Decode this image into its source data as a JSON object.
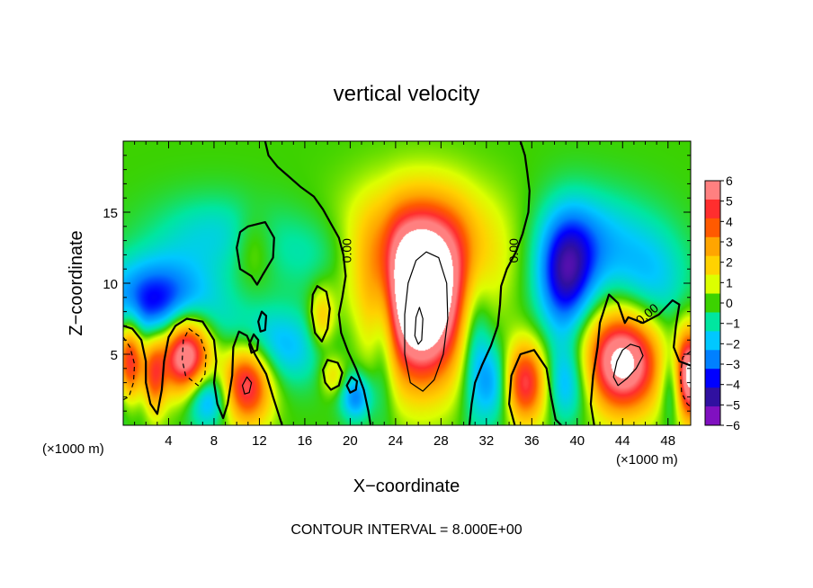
{
  "chart_data": {
    "type": "heatmap",
    "title": "vertical velocity",
    "xlabel": "X−coordinate",
    "ylabel": "Z−coordinate",
    "x_unit_left": "(×1000 m)",
    "x_unit_right": "(×1000 m)",
    "footer": "CONTOUR INTERVAL = 8.000E+00",
    "xlim": [
      0,
      50
    ],
    "ylim": [
      0,
      20
    ],
    "x_ticks": [
      4,
      8,
      12,
      16,
      20,
      24,
      28,
      32,
      36,
      40,
      44,
      48
    ],
    "x_tick_labels": [
      "4",
      "8",
      "12",
      "16",
      "20",
      "24",
      "28",
      "32",
      "36",
      "40",
      "44",
      "48"
    ],
    "y_ticks": [
      5,
      10,
      15
    ],
    "y_tick_labels": [
      "5",
      "10",
      "15"
    ],
    "contour_labels": [
      {
        "text": "0.00",
        "x": 20.1,
        "z": 12.3
      },
      {
        "text": "0.00",
        "x": 34.8,
        "z": 12.3
      },
      {
        "text": "0.00",
        "x": 46.4,
        "z": 7.6
      }
    ],
    "colorbar": {
      "range": [
        -6,
        6
      ],
      "tick_labels": [
        "6",
        "5",
        "4",
        "3",
        "2",
        "1",
        "0",
        "−1",
        "−2",
        "−3",
        "−4",
        "−5",
        "−6"
      ],
      "colors": [
        "#ff8080",
        "#ff2e2e",
        "#ff5a00",
        "#ffa500",
        "#ffd200",
        "#dcff00",
        "#3cd200",
        "#00e6a0",
        "#00c8ff",
        "#0080ff",
        "#0000ff",
        "#3010a0",
        "#8010c0"
      ]
    },
    "features": [
      {
        "x": 26.3,
        "z": 8.0,
        "sx": 2.6,
        "sz": 3.6,
        "w": 9.0
      },
      {
        "x": 26.3,
        "z": 12.5,
        "sx": 4.2,
        "sz": 3.0,
        "w": 5.0
      },
      {
        "x": 5.5,
        "z": 5.0,
        "sx": 1.6,
        "sz": 2.0,
        "w": 8.0
      },
      {
        "x": 10.8,
        "z": 3.0,
        "sx": 1.6,
        "sz": 2.0,
        "w": 6.5
      },
      {
        "x": 35.5,
        "z": 3.0,
        "sx": 1.7,
        "sz": 2.0,
        "w": 6.5
      },
      {
        "x": 44.0,
        "z": 4.5,
        "sx": 2.4,
        "sz": 2.5,
        "w": 8.0
      },
      {
        "x": 0.6,
        "z": 4.0,
        "sx": 0.9,
        "sz": 2.3,
        "w": 8.0
      },
      {
        "x": 49.8,
        "z": 3.5,
        "sx": 0.9,
        "sz": 2.2,
        "w": 8.0
      },
      {
        "x": 2.7,
        "z": 3.5,
        "sx": 0.7,
        "sz": 2.0,
        "w": 4.0
      },
      {
        "x": 17.5,
        "z": 7.5,
        "sx": 0.8,
        "sz": 1.5,
        "w": 2.5
      },
      {
        "x": 18.5,
        "z": 3.5,
        "sx": 0.8,
        "sz": 1.0,
        "w": 2.0
      },
      {
        "x": 11.5,
        "z": 12.5,
        "sx": 1.2,
        "sz": 1.8,
        "w": 1.2
      },
      {
        "x": 3.0,
        "z": 8.5,
        "sx": 3.5,
        "sz": 2.2,
        "w": -4.5
      },
      {
        "x": 0.5,
        "z": 2.5,
        "sx": 1.2,
        "sz": 2.0,
        "w": -4.0
      },
      {
        "x": 7.5,
        "z": 2.0,
        "sx": 1.5,
        "sz": 1.5,
        "w": -3.5
      },
      {
        "x": 13.0,
        "z": 5.5,
        "sx": 3.5,
        "sz": 2.0,
        "w": -2.5
      },
      {
        "x": 20.5,
        "z": 2.0,
        "sx": 1.0,
        "sz": 1.2,
        "w": -3.0
      },
      {
        "x": 23.0,
        "z": 7.0,
        "sx": 0.8,
        "sz": 4.0,
        "w": -2.5
      },
      {
        "x": 31.0,
        "z": 6.0,
        "sx": 1.0,
        "sz": 4.0,
        "w": -2.5
      },
      {
        "x": 33.0,
        "z": 3.0,
        "sx": 1.2,
        "sz": 2.0,
        "w": -3.5
      },
      {
        "x": 39.0,
        "z": 10.5,
        "sx": 1.8,
        "sz": 3.0,
        "w": -4.5
      },
      {
        "x": 38.5,
        "z": 3.0,
        "sx": 1.8,
        "sz": 2.0,
        "w": -3.5
      },
      {
        "x": 41.5,
        "z": 13.0,
        "sx": 3.0,
        "sz": 2.5,
        "w": -2.0
      },
      {
        "x": 46.5,
        "z": 10.0,
        "sx": 2.5,
        "sz": 3.0,
        "w": -2.0
      },
      {
        "x": 48.5,
        "z": 3.0,
        "sx": 0.8,
        "sz": 2.0,
        "w": -3.0
      },
      {
        "x": 8.0,
        "z": 13.5,
        "sx": 4.0,
        "sz": 2.0,
        "w": -1.5
      },
      {
        "x": 17.0,
        "z": 12.0,
        "sx": 3.0,
        "sz": 2.0,
        "w": -1.2
      }
    ],
    "contours_zero": [
      {
        "name": "contour-zero-left",
        "closed": false,
        "points": [
          [
            12.5,
            20
          ],
          [
            12.8,
            19
          ],
          [
            13.6,
            18.2
          ],
          [
            14.6,
            17.5
          ],
          [
            15.6,
            16.8
          ],
          [
            16.8,
            16.1
          ],
          [
            17.6,
            15.2
          ],
          [
            18.3,
            14.2
          ],
          [
            19.0,
            13.2
          ],
          [
            19.4,
            12.0
          ],
          [
            19.6,
            10.5
          ],
          [
            19.3,
            9.0
          ],
          [
            19.0,
            7.8
          ],
          [
            19.2,
            6.5
          ],
          [
            19.8,
            5.2
          ],
          [
            20.5,
            4.0
          ],
          [
            21.2,
            2.5
          ],
          [
            21.6,
            1.0
          ],
          [
            21.8,
            0
          ]
        ]
      },
      {
        "name": "contour-zero-right",
        "closed": false,
        "points": [
          [
            35.0,
            20
          ],
          [
            35.4,
            19
          ],
          [
            35.6,
            17.8
          ],
          [
            35.8,
            16.5
          ],
          [
            35.7,
            15.0
          ],
          [
            35.2,
            13.5
          ],
          [
            34.6,
            12.2
          ],
          [
            33.8,
            11.0
          ],
          [
            33.3,
            9.8
          ],
          [
            33.2,
            8.5
          ],
          [
            33.0,
            7.0
          ],
          [
            32.4,
            5.6
          ],
          [
            31.6,
            4.2
          ],
          [
            31.0,
            3.0
          ],
          [
            30.7,
            1.5
          ],
          [
            30.5,
            0
          ]
        ]
      },
      {
        "name": "contour-zero-hill-left",
        "closed": true,
        "points": [
          [
            11.0,
            14.0
          ],
          [
            12.5,
            14.3
          ],
          [
            13.3,
            13.2
          ],
          [
            13.2,
            11.8
          ],
          [
            12.3,
            10.6
          ],
          [
            11.8,
            9.9
          ],
          [
            11.3,
            10.5
          ],
          [
            10.3,
            11.0
          ],
          [
            10.0,
            12.5
          ],
          [
            10.3,
            13.6
          ]
        ]
      },
      {
        "name": "contour-zero-bump-1",
        "closed": true,
        "points": [
          [
            17.1,
            9.8
          ],
          [
            17.9,
            9.4
          ],
          [
            18.2,
            8.2
          ],
          [
            18.0,
            6.8
          ],
          [
            17.5,
            5.9
          ],
          [
            16.9,
            6.5
          ],
          [
            16.6,
            8.0
          ],
          [
            16.7,
            9.2
          ]
        ]
      },
      {
        "name": "contour-zero-bump-2",
        "closed": true,
        "points": [
          [
            18.0,
            4.6
          ],
          [
            18.9,
            4.4
          ],
          [
            19.3,
            3.7
          ],
          [
            19.0,
            2.8
          ],
          [
            18.3,
            2.5
          ],
          [
            17.8,
            3.0
          ],
          [
            17.6,
            3.9
          ]
        ]
      },
      {
        "name": "contour-zero-bump-3",
        "closed": true,
        "points": [
          [
            20.1,
            3.4
          ],
          [
            20.6,
            3.1
          ],
          [
            20.5,
            2.5
          ],
          [
            20.0,
            2.3
          ],
          [
            19.7,
            2.8
          ]
        ]
      },
      {
        "name": "contour-zero-bump-4",
        "closed": true,
        "points": [
          [
            12.2,
            8.0
          ],
          [
            12.6,
            7.7
          ],
          [
            12.5,
            6.7
          ],
          [
            12.1,
            6.6
          ],
          [
            11.9,
            7.3
          ]
        ]
      },
      {
        "name": "contour-zero-bump-5",
        "closed": true,
        "points": [
          [
            11.5,
            6.4
          ],
          [
            11.9,
            6.0
          ],
          [
            11.8,
            5.3
          ],
          [
            11.3,
            5.1
          ],
          [
            11.1,
            5.7
          ]
        ]
      },
      {
        "name": "contour-zero-plume-left",
        "closed": false,
        "points": [
          [
            0,
            7.0
          ],
          [
            0.8,
            6.8
          ],
          [
            1.6,
            6.0
          ],
          [
            2.0,
            4.5
          ],
          [
            2.0,
            3.0
          ],
          [
            2.4,
            1.5
          ],
          [
            3.0,
            0.8
          ],
          [
            3.4,
            2.5
          ],
          [
            3.6,
            4.5
          ],
          [
            4.0,
            6.2
          ],
          [
            4.6,
            7.0
          ],
          [
            5.6,
            7.5
          ],
          [
            7.0,
            7.3
          ],
          [
            8.0,
            6.0
          ],
          [
            8.2,
            4.5
          ],
          [
            8.0,
            3.0
          ],
          [
            8.3,
            1.5
          ],
          [
            8.8,
            0.5
          ],
          [
            9.2,
            1.5
          ],
          [
            9.6,
            3.5
          ],
          [
            9.7,
            5.5
          ],
          [
            10.2,
            6.6
          ],
          [
            10.9,
            6.3
          ],
          [
            11.6,
            5.0
          ],
          [
            12.6,
            3.6
          ],
          [
            13.2,
            2.0
          ],
          [
            14.0,
            0
          ]
        ]
      },
      {
        "name": "contour-zero-plume-right",
        "closed": false,
        "points": [
          [
            34.5,
            0
          ],
          [
            34.0,
            1.5
          ],
          [
            34.2,
            3.5
          ],
          [
            35.0,
            5.0
          ],
          [
            36.2,
            5.3
          ],
          [
            37.3,
            4.0
          ],
          [
            37.7,
            2.0
          ],
          [
            38.1,
            0.4
          ],
          [
            38.6,
            0
          ]
        ]
      },
      {
        "name": "contour-zero-far-right",
        "closed": false,
        "points": [
          [
            41.5,
            0
          ],
          [
            41.2,
            1.5
          ],
          [
            41.4,
            3.5
          ],
          [
            41.8,
            5.5
          ],
          [
            42.0,
            7.2
          ],
          [
            42.8,
            9.2
          ],
          [
            43.6,
            8.6
          ],
          [
            44.2,
            7.2
          ],
          [
            44.5,
            7.6
          ],
          [
            45.8,
            7.2
          ],
          [
            47.2,
            7.8
          ],
          [
            48.4,
            8.8
          ],
          [
            49.0,
            8.5
          ],
          [
            48.7,
            7.0
          ],
          [
            48.5,
            5.5
          ],
          [
            49.0,
            4.5
          ],
          [
            50,
            4.2
          ]
        ]
      }
    ],
    "contours_positive": [
      {
        "name": "contour-plus-8-outer",
        "closed": true,
        "points": [
          [
            26.7,
            12.2
          ],
          [
            27.8,
            11.8
          ],
          [
            28.5,
            10.0
          ],
          [
            28.6,
            7.5
          ],
          [
            28.2,
            5.0
          ],
          [
            27.4,
            3.2
          ],
          [
            26.4,
            2.4
          ],
          [
            25.3,
            3.0
          ],
          [
            24.8,
            5.0
          ],
          [
            24.8,
            7.8
          ],
          [
            25.1,
            10.0
          ],
          [
            25.8,
            11.6
          ]
        ]
      },
      {
        "name": "contour-plus-8-inner",
        "closed": true,
        "points": [
          [
            26.1,
            8.3
          ],
          [
            26.4,
            7.5
          ],
          [
            26.3,
            6.0
          ],
          [
            26.0,
            5.7
          ],
          [
            25.7,
            6.3
          ],
          [
            25.8,
            7.6
          ]
        ]
      },
      {
        "name": "contour-plus-8-left",
        "closed": true,
        "points": [
          [
            10.9,
            3.4
          ],
          [
            11.3,
            3.0
          ],
          [
            11.1,
            2.3
          ],
          [
            10.7,
            2.2
          ],
          [
            10.5,
            2.8
          ]
        ]
      },
      {
        "name": "contour-plus-8-right",
        "closed": true,
        "points": [
          [
            44.7,
            5.7
          ],
          [
            45.5,
            5.5
          ],
          [
            45.8,
            4.9
          ],
          [
            45.2,
            4.0
          ],
          [
            44.4,
            3.3
          ],
          [
            43.6,
            2.8
          ],
          [
            43.2,
            3.4
          ],
          [
            43.5,
            4.5
          ],
          [
            44.0,
            5.3
          ]
        ]
      }
    ],
    "contours_negative": [
      {
        "name": "contour-minus-8-left-edge",
        "closed": false,
        "points": [
          [
            0,
            6.2
          ],
          [
            0.6,
            5.5
          ],
          [
            1.0,
            4.3
          ],
          [
            0.9,
            3.0
          ],
          [
            0.5,
            2.0
          ],
          [
            0,
            1.8
          ]
        ]
      },
      {
        "name": "contour-minus-8-plume",
        "closed": true,
        "points": [
          [
            5.8,
            6.8
          ],
          [
            6.8,
            6.2
          ],
          [
            7.3,
            5.0
          ],
          [
            7.2,
            3.6
          ],
          [
            6.6,
            2.8
          ],
          [
            5.5,
            3.5
          ],
          [
            5.2,
            4.6
          ],
          [
            5.3,
            6.0
          ]
        ]
      },
      {
        "name": "contour-minus-8-right-edge",
        "closed": false,
        "points": [
          [
            50,
            5.2
          ],
          [
            49.3,
            4.8
          ],
          [
            49.1,
            3.6
          ],
          [
            49.2,
            2.3
          ],
          [
            49.7,
            1.5
          ],
          [
            50,
            1.3
          ]
        ]
      }
    ]
  }
}
